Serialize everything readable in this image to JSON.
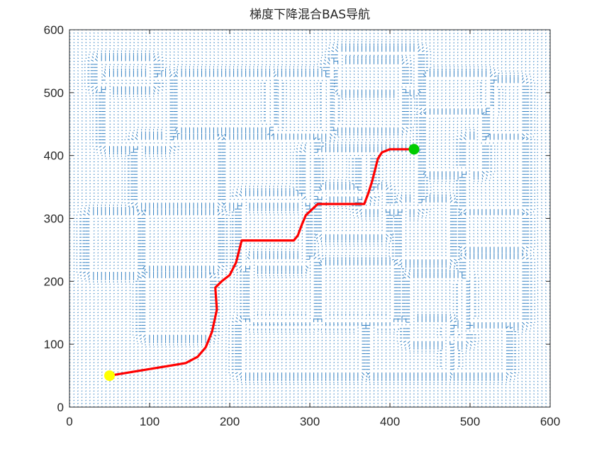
{
  "chart_data": {
    "type": "quiver",
    "title": "梯度下降混合BAS导航",
    "xlabel": "",
    "ylabel": "",
    "xlim": [
      0,
      600
    ],
    "ylim": [
      0,
      600
    ],
    "xticks": [
      0,
      100,
      200,
      300,
      400,
      500,
      600
    ],
    "yticks": [
      0,
      100,
      200,
      300,
      400,
      500,
      600
    ],
    "xtick_labels": [
      "0",
      "100",
      "200",
      "300",
      "400",
      "500",
      "600"
    ],
    "ytick_labels": [
      "0",
      "100",
      "200",
      "300",
      "400",
      "500",
      "600"
    ],
    "grid": false,
    "field_grid_spacing": 5,
    "field_color": "#2F7EC1",
    "obstacles": [
      {
        "x": [
          40,
          100
        ],
        "y": [
          515,
          545
        ]
      },
      {
        "x": [
          50,
          120
        ],
        "y": [
          420,
          520
        ]
      },
      {
        "x": [
          140,
          250
        ],
        "y": [
          450,
          520
        ]
      },
      {
        "x": [
          260,
          320
        ],
        "y": [
          440,
          520
        ]
      },
      {
        "x": [
          330,
          410
        ],
        "y": [
          450,
          540
        ]
      },
      {
        "x": [
          340,
          430
        ],
        "y": [
          510,
          560
        ]
      },
      {
        "x": [
          450,
          520
        ],
        "y": [
          480,
          520
        ]
      },
      {
        "x": [
          530,
          560
        ],
        "y": [
          440,
          510
        ]
      },
      {
        "x": [
          450,
          510
        ],
        "y": [
          380,
          460
        ]
      },
      {
        "x": [
          90,
          180
        ],
        "y": [
          330,
          420
        ]
      },
      {
        "x": [
          200,
          300
        ],
        "y": [
          330,
          420
        ]
      },
      {
        "x": [
          300,
          370
        ],
        "y": [
          340,
          400
        ]
      },
      {
        "x": [
          370,
          430
        ],
        "y": [
          320,
          400
        ]
      },
      {
        "x": [
          500,
          560
        ],
        "y": [
          320,
          420
        ]
      },
      {
        "x": [
          30,
          80
        ],
        "y": [
          220,
          300
        ]
      },
      {
        "x": [
          100,
          180
        ],
        "y": [
          230,
          300
        ]
      },
      {
        "x": [
          220,
          290
        ],
        "y": [
          230,
          330
        ]
      },
      {
        "x": [
          320,
          390
        ],
        "y": [
          280,
          340
        ]
      },
      {
        "x": [
          420,
          470
        ],
        "y": [
          240,
          320
        ]
      },
      {
        "x": [
          500,
          560
        ],
        "y": [
          260,
          300
        ]
      },
      {
        "x": [
          100,
          170
        ],
        "y": [
          120,
          200
        ]
      },
      {
        "x": [
          230,
          300
        ],
        "y": [
          140,
          230
        ]
      },
      {
        "x": [
          320,
          400
        ],
        "y": [
          140,
          220
        ]
      },
      {
        "x": [
          430,
          490
        ],
        "y": [
          110,
          200
        ]
      },
      {
        "x": [
          500,
          560
        ],
        "y": [
          140,
          230
        ]
      },
      {
        "x": [
          220,
          360
        ],
        "y": [
          60,
          130
        ]
      },
      {
        "x": [
          380,
          470
        ],
        "y": [
          60,
          130
        ]
      },
      {
        "x": [
          480,
          540
        ],
        "y": [
          60,
          120
        ]
      }
    ],
    "series": [
      {
        "color": "#FF0000",
        "x": [
          50,
          145,
          160,
          170,
          178,
          184,
          182,
          190,
          200,
          208,
          215,
          280,
          285,
          290,
          295,
          310,
          368,
          373,
          378,
          385,
          390,
          400,
          430
        ],
        "y": [
          50,
          70,
          80,
          95,
          120,
          155,
          190,
          200,
          210,
          230,
          265,
          265,
          273,
          290,
          305,
          323,
          323,
          340,
          360,
          395,
          405,
          410,
          410
        ]
      }
    ],
    "markers": [
      {
        "x": 50,
        "y": 50,
        "color": "#FFFF00"
      },
      {
        "x": 430,
        "y": 410,
        "color": "#00CC00"
      }
    ]
  }
}
